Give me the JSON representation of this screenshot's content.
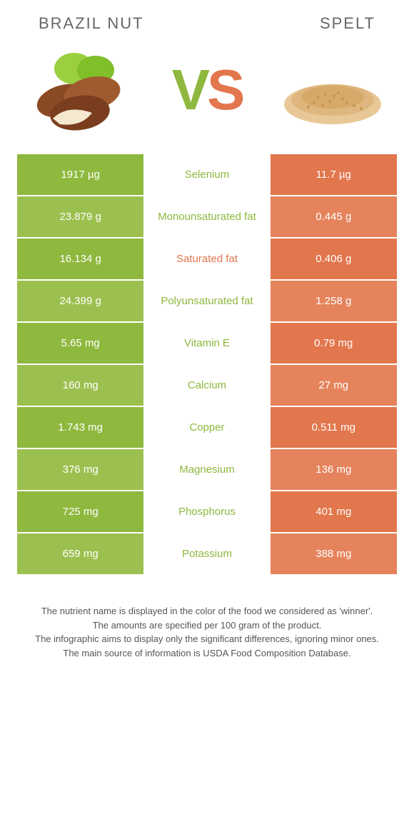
{
  "header": {
    "left_title": "BRAZIL NUT",
    "right_title": "SPELT",
    "vs_v": "V",
    "vs_s": "S"
  },
  "colors": {
    "left": "#8eb83e",
    "right": "#e2764c",
    "left_alt": "#9cc04f",
    "right_alt": "#e5835c",
    "mid_text_left": "#8eb83e",
    "mid_text_right": "#e2764c"
  },
  "rows": [
    {
      "left": "1917 µg",
      "mid": "Selenium",
      "right": "11.7 µg",
      "winner": "left"
    },
    {
      "left": "23.879 g",
      "mid": "Monounsaturated fat",
      "right": "0.445 g",
      "winner": "left"
    },
    {
      "left": "16.134 g",
      "mid": "Saturated fat",
      "right": "0.406 g",
      "winner": "right"
    },
    {
      "left": "24.399 g",
      "mid": "Polyunsaturated fat",
      "right": "1.258 g",
      "winner": "left"
    },
    {
      "left": "5.65 mg",
      "mid": "Vitamin E",
      "right": "0.79 mg",
      "winner": "left"
    },
    {
      "left": "160 mg",
      "mid": "Calcium",
      "right": "27 mg",
      "winner": "left"
    },
    {
      "left": "1.743 mg",
      "mid": "Copper",
      "right": "0.511 mg",
      "winner": "left"
    },
    {
      "left": "376 mg",
      "mid": "Magnesium",
      "right": "136 mg",
      "winner": "left"
    },
    {
      "left": "725 mg",
      "mid": "Phosphorus",
      "right": "401 mg",
      "winner": "left"
    },
    {
      "left": "659 mg",
      "mid": "Potassium",
      "right": "388 mg",
      "winner": "left"
    }
  ],
  "footnotes": {
    "l1": "The nutrient name is displayed in the color of the food we considered as 'winner'.",
    "l2": "The amounts are specified per 100 gram of the product.",
    "l3": "The infographic aims to display only the significant differences, ignoring minor ones.",
    "l4": "The main source of information is USDA Food Composition Database."
  }
}
